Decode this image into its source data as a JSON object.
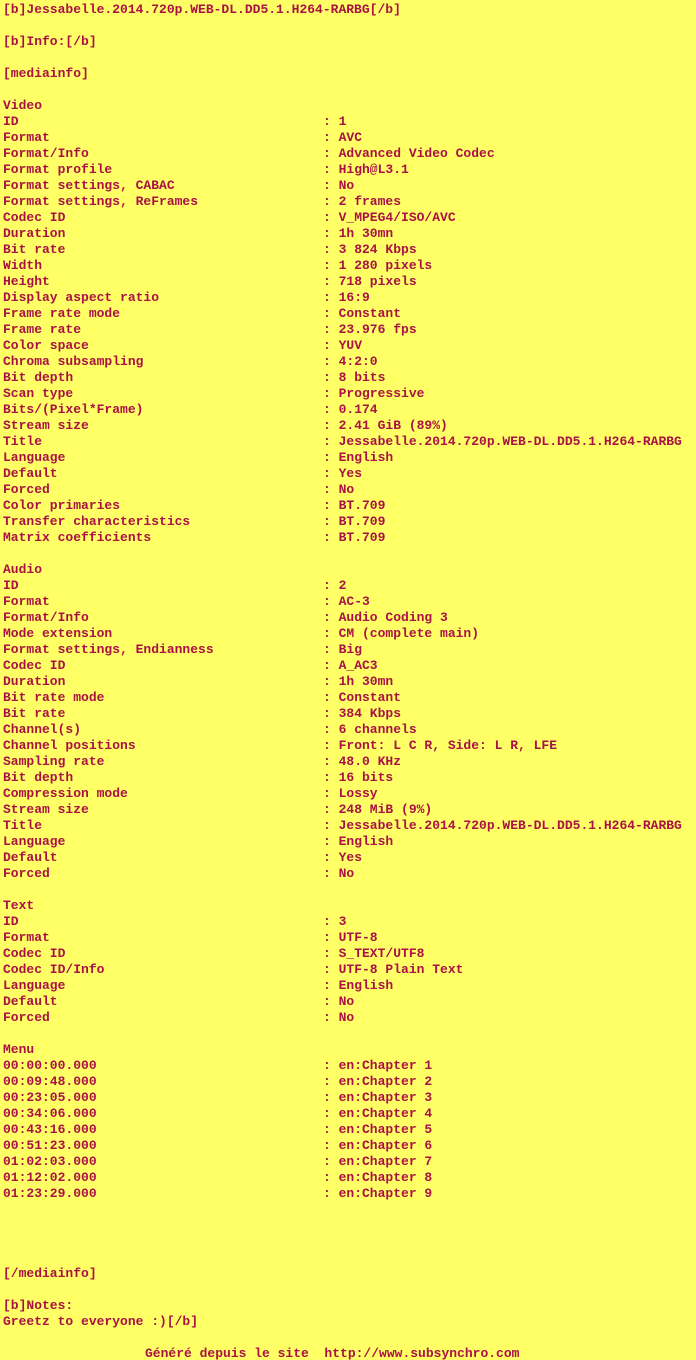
{
  "colors": {
    "background": "#FFFF66",
    "text": "#AA1144"
  },
  "header": {
    "title_bb": "[b]Jessabelle.2014.720p.WEB-DL.DD5.1.H264-RARBG[/b]",
    "info_label_bb": "[b]Info:[/b]",
    "mediainfo_open": "[mediainfo]",
    "mediainfo_close": "[/mediainfo]"
  },
  "sections": [
    {
      "name": "Video",
      "rows": [
        [
          "ID",
          "1"
        ],
        [
          "Format",
          "AVC"
        ],
        [
          "Format/Info",
          "Advanced Video Codec"
        ],
        [
          "Format profile",
          "High@L3.1"
        ],
        [
          "Format settings, CABAC",
          "No"
        ],
        [
          "Format settings, ReFrames",
          "2 frames"
        ],
        [
          "Codec ID",
          "V_MPEG4/ISO/AVC"
        ],
        [
          "Duration",
          "1h 30mn"
        ],
        [
          "Bit rate",
          "3 824 Kbps"
        ],
        [
          "Width",
          "1 280 pixels"
        ],
        [
          "Height",
          "718 pixels"
        ],
        [
          "Display aspect ratio",
          "16:9"
        ],
        [
          "Frame rate mode",
          "Constant"
        ],
        [
          "Frame rate",
          "23.976 fps"
        ],
        [
          "Color space",
          "YUV"
        ],
        [
          "Chroma subsampling",
          "4:2:0"
        ],
        [
          "Bit depth",
          "8 bits"
        ],
        [
          "Scan type",
          "Progressive"
        ],
        [
          "Bits/(Pixel*Frame)",
          "0.174"
        ],
        [
          "Stream size",
          "2.41 GiB (89%)"
        ],
        [
          "Title",
          "Jessabelle.2014.720p.WEB-DL.DD5.1.H264-RARBG"
        ],
        [
          "Language",
          "English"
        ],
        [
          "Default",
          "Yes"
        ],
        [
          "Forced",
          "No"
        ],
        [
          "Color primaries",
          "BT.709"
        ],
        [
          "Transfer characteristics",
          "BT.709"
        ],
        [
          "Matrix coefficients",
          "BT.709"
        ]
      ]
    },
    {
      "name": "Audio",
      "rows": [
        [
          "ID",
          "2"
        ],
        [
          "Format",
          "AC-3"
        ],
        [
          "Format/Info",
          "Audio Coding 3"
        ],
        [
          "Mode extension",
          "CM (complete main)"
        ],
        [
          "Format settings, Endianness",
          "Big"
        ],
        [
          "Codec ID",
          "A_AC3"
        ],
        [
          "Duration",
          "1h 30mn"
        ],
        [
          "Bit rate mode",
          "Constant"
        ],
        [
          "Bit rate",
          "384 Kbps"
        ],
        [
          "Channel(s)",
          "6 channels"
        ],
        [
          "Channel positions",
          "Front: L C R, Side: L R, LFE"
        ],
        [
          "Sampling rate",
          "48.0 KHz"
        ],
        [
          "Bit depth",
          "16 bits"
        ],
        [
          "Compression mode",
          "Lossy"
        ],
        [
          "Stream size",
          "248 MiB (9%)"
        ],
        [
          "Title",
          "Jessabelle.2014.720p.WEB-DL.DD5.1.H264-RARBG"
        ],
        [
          "Language",
          "English"
        ],
        [
          "Default",
          "Yes"
        ],
        [
          "Forced",
          "No"
        ]
      ]
    },
    {
      "name": "Text",
      "rows": [
        [
          "ID",
          "3"
        ],
        [
          "Format",
          "UTF-8"
        ],
        [
          "Codec ID",
          "S_TEXT/UTF8"
        ],
        [
          "Codec ID/Info",
          "UTF-8 Plain Text"
        ],
        [
          "Language",
          "English"
        ],
        [
          "Default",
          "No"
        ],
        [
          "Forced",
          "No"
        ]
      ]
    },
    {
      "name": "Menu",
      "rows": [
        [
          "00:00:00.000",
          "en:Chapter 1"
        ],
        [
          "00:09:48.000",
          "en:Chapter 2"
        ],
        [
          "00:23:05.000",
          "en:Chapter 3"
        ],
        [
          "00:34:06.000",
          "en:Chapter 4"
        ],
        [
          "00:43:16.000",
          "en:Chapter 5"
        ],
        [
          "00:51:23.000",
          "en:Chapter 6"
        ],
        [
          "01:02:03.000",
          "en:Chapter 7"
        ],
        [
          "01:12:02.000",
          "en:Chapter 8"
        ],
        [
          "01:23:29.000",
          "en:Chapter 9"
        ]
      ]
    }
  ],
  "notes": {
    "notes_bb": "[b]Notes:",
    "greetz_bb": "Greetz to everyone :)[/b]"
  },
  "footer": {
    "generated_by": "Généré depuis le site  http://www.subsynchro.com"
  }
}
